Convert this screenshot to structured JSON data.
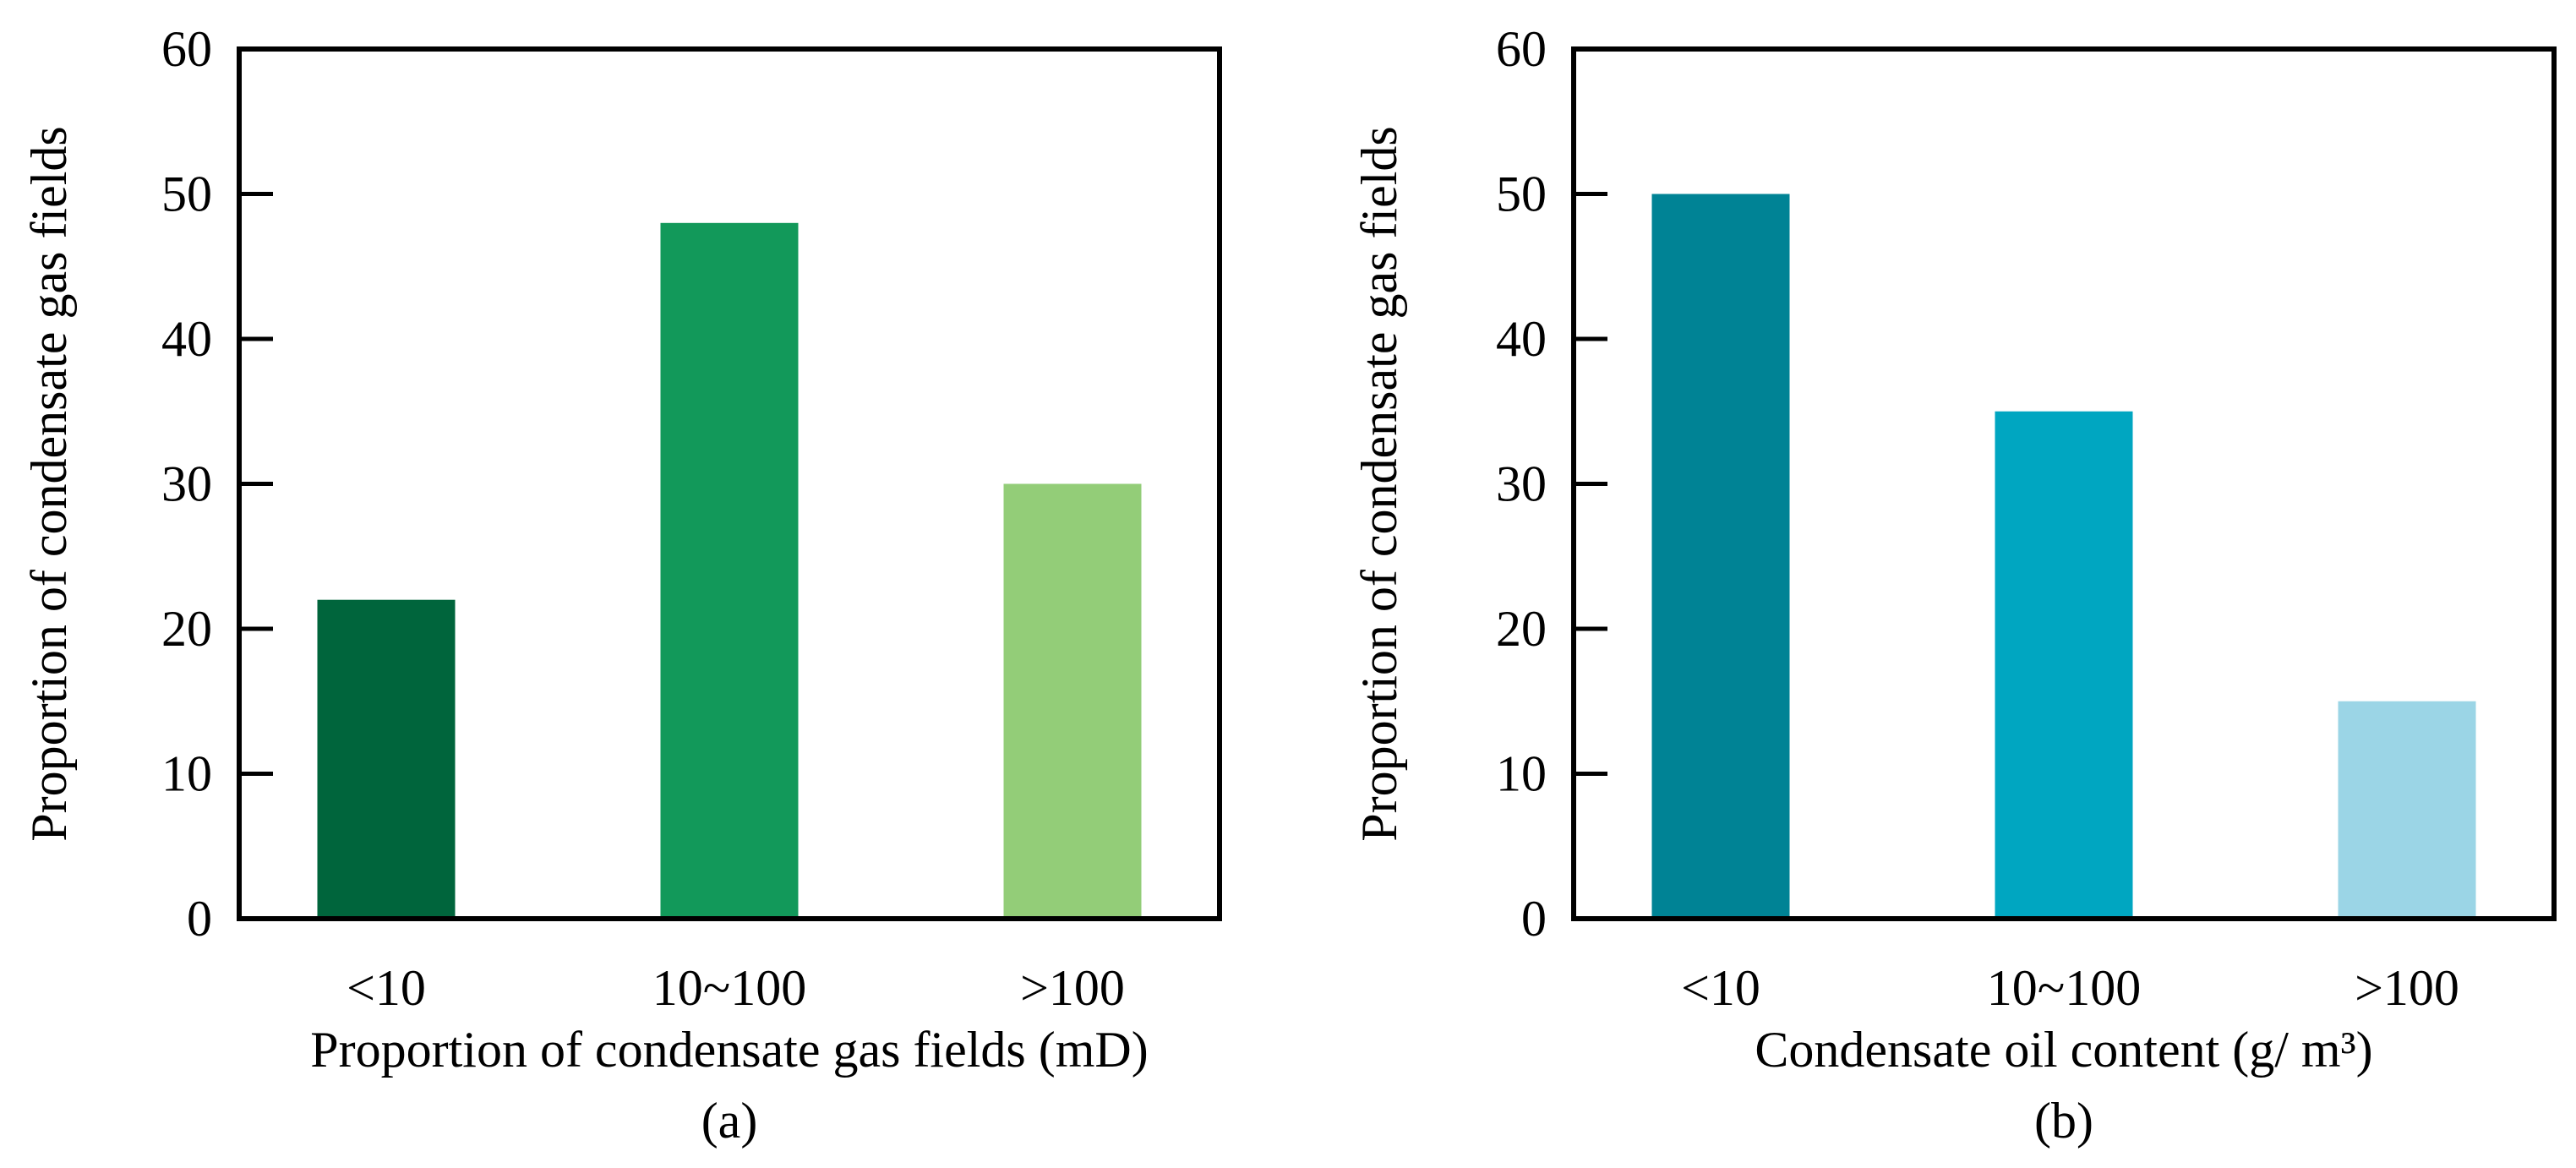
{
  "chart_data": [
    {
      "type": "bar",
      "panel": "(a)",
      "categories": [
        "<10",
        "10~100",
        ">100"
      ],
      "values": [
        22,
        48,
        30
      ],
      "colors": [
        "#00653c",
        "#12995a",
        "#93cd78"
      ],
      "xlabel": "Proportion of condensate gas fields (mD)",
      "ylabel": "Proportion of condensate gas fields",
      "ylim": [
        0,
        60
      ],
      "yticks": [
        0,
        10,
        20,
        30,
        40,
        50,
        60
      ],
      "grid": false
    },
    {
      "type": "bar",
      "panel": "(b)",
      "categories": [
        "<10",
        "10~100",
        ">100"
      ],
      "values": [
        50,
        35,
        15
      ],
      "colors": [
        "#008395",
        "#00a6c1",
        "#9bd5e6"
      ],
      "xlabel": "Condensate oil content (g/ m³)",
      "ylabel": "Proportion of condensate gas fields",
      "ylim": [
        0,
        60
      ],
      "yticks": [
        0,
        10,
        20,
        30,
        40,
        50,
        60
      ],
      "grid": false
    }
  ]
}
